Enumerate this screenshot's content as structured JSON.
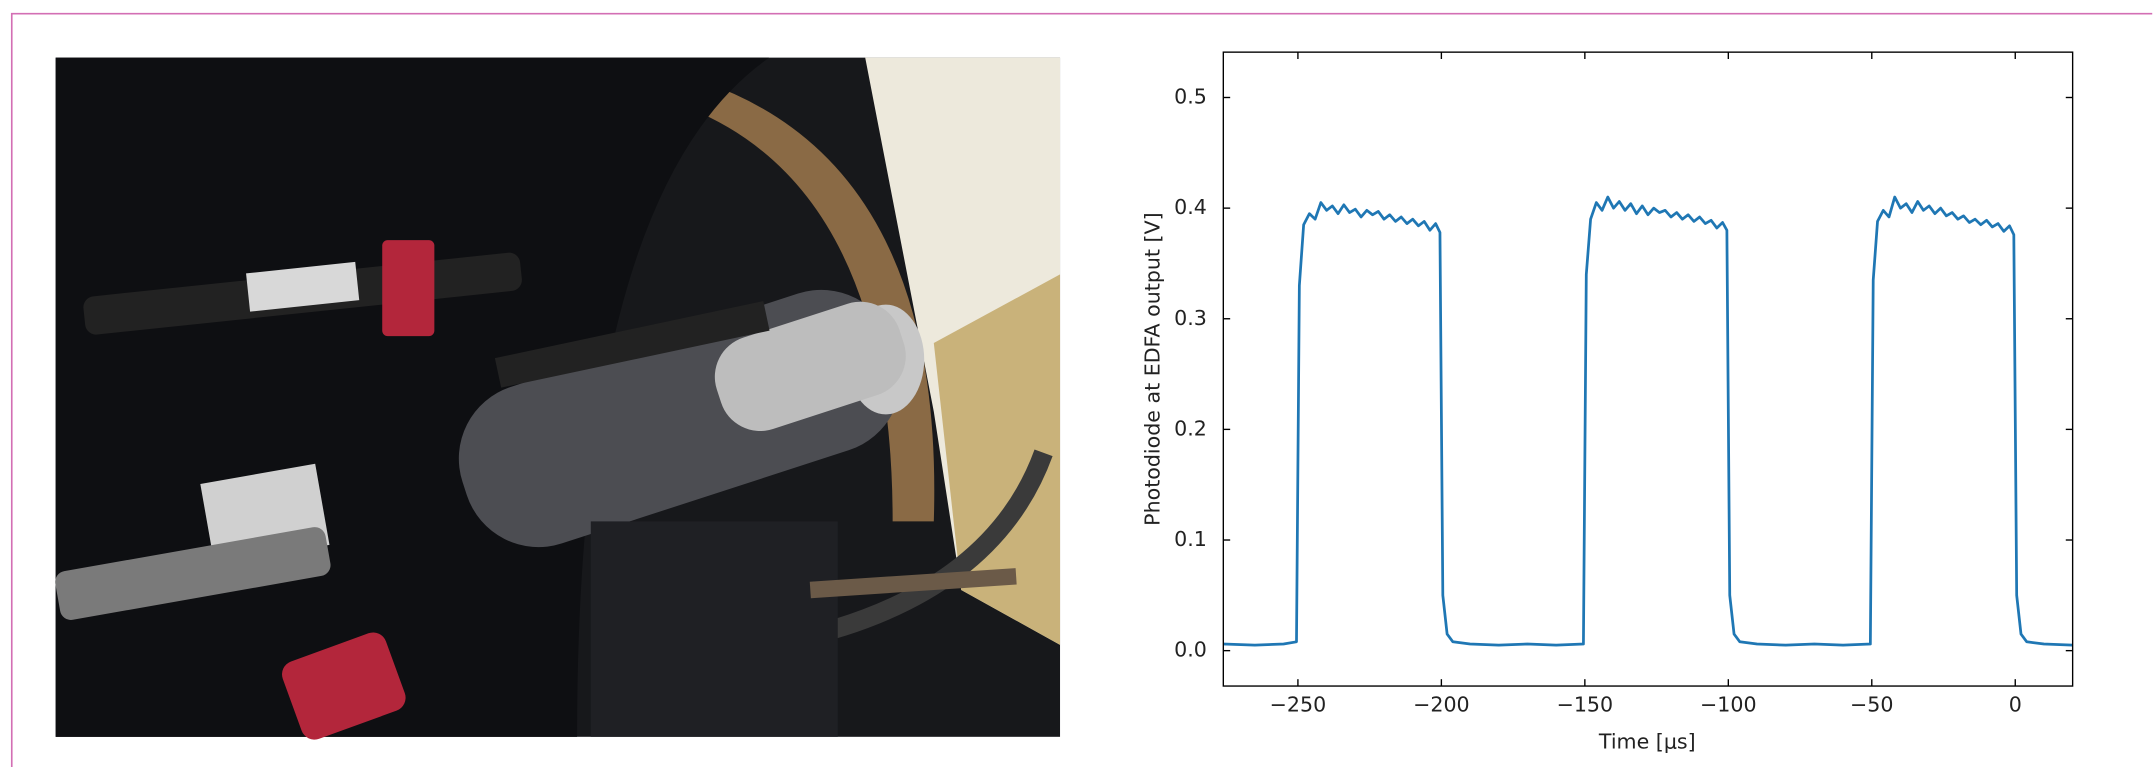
{
  "chart_data": {
    "type": "line",
    "xlabel": "Time [μs]",
    "ylabel": "Photodiode at EDFA output [V]",
    "x": [
      -276,
      -265,
      -255,
      -250.5,
      -249.5,
      -248,
      -246,
      -244,
      -242,
      -240,
      -238,
      -236,
      -234,
      -232,
      -230,
      -228,
      -226,
      -224,
      -222,
      -220,
      -218,
      -216,
      -214,
      -212,
      -210,
      -208,
      -206,
      -204,
      -202,
      -200.5,
      -199.5,
      -198,
      -196,
      -190,
      -180,
      -170,
      -160,
      -150.5,
      -149.5,
      -148,
      -146,
      -144,
      -142,
      -140,
      -138,
      -136,
      -134,
      -132,
      -130,
      -128,
      -126,
      -124,
      -122,
      -120,
      -118,
      -116,
      -114,
      -112,
      -110,
      -108,
      -106,
      -104,
      -102,
      -100.5,
      -99.5,
      -98,
      -96,
      -90,
      -80,
      -70,
      -60,
      -50.5,
      -49.5,
      -48,
      -46,
      -44,
      -42,
      -40,
      -38,
      -36,
      -34,
      -32,
      -30,
      -28,
      -26,
      -24,
      -22,
      -20,
      -18,
      -16,
      -14,
      -12,
      -10,
      -8,
      -6,
      -4,
      -2,
      -0.5,
      0.5,
      2,
      4,
      10,
      20
    ],
    "series": [
      {
        "color": "#1f77b4",
        "values": [
          0.006,
          0.005,
          0.006,
          0.008,
          0.33,
          0.385,
          0.395,
          0.39,
          0.405,
          0.398,
          0.402,
          0.395,
          0.403,
          0.396,
          0.399,
          0.392,
          0.398,
          0.394,
          0.397,
          0.39,
          0.394,
          0.388,
          0.392,
          0.386,
          0.39,
          0.384,
          0.388,
          0.38,
          0.386,
          0.378,
          0.05,
          0.015,
          0.008,
          0.006,
          0.005,
          0.006,
          0.005,
          0.006,
          0.34,
          0.39,
          0.405,
          0.398,
          0.41,
          0.4,
          0.406,
          0.398,
          0.404,
          0.395,
          0.402,
          0.394,
          0.4,
          0.396,
          0.398,
          0.392,
          0.396,
          0.39,
          0.394,
          0.388,
          0.392,
          0.386,
          0.389,
          0.382,
          0.387,
          0.38,
          0.05,
          0.015,
          0.008,
          0.006,
          0.005,
          0.006,
          0.005,
          0.006,
          0.335,
          0.388,
          0.398,
          0.392,
          0.41,
          0.4,
          0.404,
          0.396,
          0.406,
          0.398,
          0.402,
          0.395,
          0.4,
          0.393,
          0.396,
          0.39,
          0.393,
          0.387,
          0.39,
          0.385,
          0.389,
          0.383,
          0.386,
          0.379,
          0.384,
          0.376,
          0.05,
          0.015,
          0.008,
          0.006,
          0.005
        ]
      }
    ],
    "xlim": [
      -276,
      20
    ],
    "ylim": [
      -0.032,
      0.541
    ],
    "xticks": [
      {
        "value": -250,
        "label": "−250"
      },
      {
        "value": -200,
        "label": "−200"
      },
      {
        "value": -150,
        "label": "−150"
      },
      {
        "value": -100,
        "label": "−100"
      },
      {
        "value": -50,
        "label": "−50"
      },
      0
    ],
    "yticks": [
      {
        "value": 0,
        "label": "0.0"
      },
      0.1,
      0.2,
      0.3,
      0.4,
      0.5
    ],
    "grid": false
  }
}
